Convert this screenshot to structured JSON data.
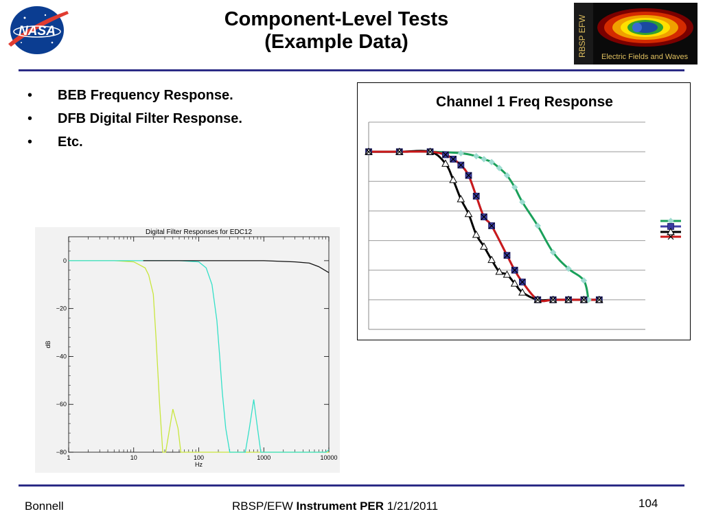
{
  "slide": {
    "title_line1": "Component-Level Tests",
    "title_line2": "(Example Data)",
    "logo_left": {
      "text": "NASA"
    },
    "logo_right": {
      "side_text": "RBSP EFW",
      "caption": "Electric Fields and Waves"
    },
    "bullets": [
      {
        "marker": "•",
        "label": "BEB Frequency Response."
      },
      {
        "marker": "•",
        "label": "DFB Digital Filter Response."
      },
      {
        "marker": "•",
        "label": "Etc."
      }
    ],
    "footer": {
      "left": "Bonnell",
      "center_prefix": "RBSP/EFW ",
      "center_bold": "Instrument PER",
      "center_suffix": " 1/21/2011",
      "page_number": "104"
    },
    "accent_color": "#2b2b86"
  },
  "chart_data": [
    {
      "type": "line",
      "title": "Digital Filter Responses for EDC12",
      "xlabel": "Hz",
      "ylabel": "dB",
      "xscale": "log",
      "xlim": [
        1,
        10000
      ],
      "ylim": [
        -80,
        10
      ],
      "xticks": [
        "1",
        "10",
        "100",
        "1000",
        "10000"
      ],
      "yticks": [
        "0",
        "−20",
        "−40",
        "−60",
        "−80"
      ],
      "series": [
        {
          "color": "#c8e63c",
          "x": [
            1,
            5,
            10,
            15,
            17,
            20,
            22,
            25,
            28,
            31,
            40,
            48,
            53,
            60,
            10000
          ],
          "y": [
            0,
            0,
            -0.5,
            -3,
            -6,
            -14,
            -32,
            -60,
            -80,
            -80,
            -62,
            -70,
            -80,
            -80,
            -80
          ]
        },
        {
          "color": "#33e0c8",
          "x": [
            1,
            50,
            100,
            130,
            160,
            190,
            210,
            230,
            260,
            300,
            380,
            470,
            520,
            600,
            700,
            800,
            900,
            1000,
            9000,
            10000
          ],
          "y": [
            0,
            0,
            -0.5,
            -3,
            -10,
            -25,
            -40,
            -55,
            -70,
            -80,
            -80,
            -80,
            -80,
            -70,
            -58,
            -70,
            -80,
            -80,
            -80,
            -79
          ]
        },
        {
          "color": "#111111",
          "x": [
            14,
            100,
            1000,
            3000,
            5000,
            7000,
            10000
          ],
          "y": [
            0,
            0,
            0,
            -0.5,
            -1,
            -2.5,
            -5
          ]
        }
      ]
    },
    {
      "type": "line",
      "title": "Channel 1 Freq Response",
      "grid": true,
      "legend": "right",
      "series": [
        {
          "color": "#1aa05a",
          "marker": "diamond",
          "x": [
            0,
            2,
            4,
            6,
            7,
            7.5,
            8,
            8.5,
            9,
            9.5,
            10,
            11,
            12,
            13,
            14,
            14.3
          ],
          "y": [
            6,
            6,
            6,
            5.95,
            5.85,
            5.75,
            5.65,
            5.45,
            5.2,
            4.8,
            4.3,
            3.5,
            2.6,
            2.05,
            1.65,
            1
          ]
        },
        {
          "color": "#4040a8",
          "marker": "square",
          "x": [
            0,
            2,
            4,
            5,
            5.5,
            6,
            6.5,
            7,
            7.5,
            8,
            9,
            9.5,
            10,
            11,
            12,
            13,
            14,
            15
          ],
          "y": [
            6,
            6,
            6,
            5.9,
            5.75,
            5.55,
            5.2,
            4.5,
            3.8,
            3.5,
            2.5,
            2.0,
            1.6,
            1,
            1,
            1,
            1,
            1
          ]
        },
        {
          "color": "#000000",
          "marker": "triangle",
          "x": [
            0,
            2,
            4,
            5,
            5.5,
            6,
            6.5,
            7,
            7.5,
            8,
            8.5,
            9,
            9.5,
            10,
            11,
            12,
            13,
            14,
            15
          ],
          "y": [
            6,
            6,
            6,
            5.6,
            5.05,
            4.4,
            3.9,
            3.2,
            2.8,
            2.35,
            1.95,
            1.85,
            1.55,
            1.25,
            1,
            1,
            1,
            1,
            1
          ]
        },
        {
          "color": "#cc1a1a",
          "marker": "x",
          "x": [
            0,
            2,
            4,
            5,
            5.5,
            6,
            6.5,
            7,
            7.5,
            8,
            9,
            9.5,
            10,
            11,
            12,
            13,
            14,
            15
          ],
          "y": [
            6,
            6,
            6,
            5.9,
            5.75,
            5.55,
            5.2,
            4.5,
            3.8,
            3.5,
            2.5,
            2.0,
            1.6,
            1,
            1,
            1,
            1,
            1
          ]
        }
      ]
    }
  ]
}
